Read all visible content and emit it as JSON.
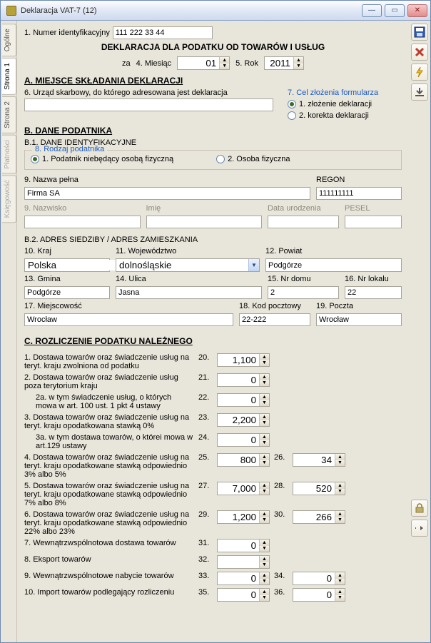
{
  "window": {
    "title": "Deklaracja VAT-7 (12)"
  },
  "tabs": {
    "ogolne": "Ogólne",
    "strona1": "Strona 1",
    "strona2": "Strona 2",
    "platnosci": "Płatności",
    "ksiegowosc": "Księgowość"
  },
  "head": {
    "label1": "1. Numer identyfikacyjny",
    "id": "111 222 33 44",
    "title": "DEKLARACJA DLA PODATKU OD TOWARÓW I USŁUG",
    "za": "za",
    "l4": "4. Miesiąc",
    "month": "01",
    "l5": "5. Rok",
    "year": "2011"
  },
  "A": {
    "header": "A. MIEJSCE SKŁADANIA DEKLARACJI",
    "l6": "6. Urząd skarbowy, do którego adresowana jest deklaracja",
    "v6": "",
    "l7": "7. Cel złożenia formularza",
    "opt1": "1. złożenie deklaracji",
    "opt2": "2. korekta deklaracji"
  },
  "B": {
    "header": "B. DANE PODATNIKA",
    "b1": "B.1. DANE IDENTYFIKACYJNE",
    "l8": "8. Rodzaj podatnika",
    "opt1": "1. Podatnik niebędący osobą fizyczną",
    "opt2": "2. Osoba fizyczna",
    "l9": "9. Nazwa pełna",
    "regonL": "REGON",
    "nazwa": "Firma SA",
    "regon": "111111111",
    "nazwiskoL": "9. Nazwisko",
    "imieL": "Imię",
    "dataL": "Data urodzenia",
    "peselL": "PESEL",
    "b2": "B.2. ADRES SIEDZIBY / ADRES ZAMIESZKANIA",
    "l10": "10. Kraj",
    "l11": "11. Województwo",
    "l12": "12. Powiat",
    "v10": "Polska",
    "v11": "dolnośląskie",
    "v12": "Podgórze",
    "l13": "13. Gmina",
    "l14": "14. Ulica",
    "l15": "15. Nr domu",
    "l16": "16. Nr lokalu",
    "v13": "Podgórze",
    "v14": "Jasna",
    "v15": "2",
    "v16": "22",
    "l17": "17. Miejscowość",
    "l18": "18. Kod pocztowy",
    "l19": "19. Poczta",
    "v17": "Wrocław",
    "v18": "22-222",
    "v19": "Wrocław"
  },
  "C": {
    "header": "C. ROZLICZENIE PODATKU NALEŻNEGO",
    "rows": [
      {
        "t": "1. Dostawa towarów oraz świadczenie usług na teryt. kraju zwolniona od podatku",
        "a": "20.",
        "av": "1,100"
      },
      {
        "t": "2. Dostawa towarów oraz świadczenie usług poza terytorium kraju",
        "a": "21.",
        "av": "0"
      },
      {
        "t": "   2a. w tym świadczenie usług, o których mowa w art. 100 ust. 1 pkt 4 ustawy",
        "a": "22.",
        "av": "0",
        "indent": true
      },
      {
        "t": "3. Dostawa towarów oraz świadczenie usług na teryt. kraju opodatkowana stawką 0%",
        "a": "23.",
        "av": "2,200"
      },
      {
        "t": "   3a. w tym dostawa towarów, o którei mowa w art.129 ustawy",
        "a": "24.",
        "av": "0",
        "indent": true
      },
      {
        "t": "4. Dostawa towarów oraz świadczenie usług na teryt. kraju opodatkowane stawką odpowiednio 3% albo 5%",
        "a": "25.",
        "av": "800",
        "b": "26.",
        "bv": "34"
      },
      {
        "t": "5. Dostawa towarów oraz świadczenie usług na teryt. kraju opodatkowane stawką odpowiednio 7% albo 8%",
        "a": "27.",
        "av": "7,000",
        "b": "28.",
        "bv": "520"
      },
      {
        "t": "6. Dostawa towarów oraz świadczenie usług na teryt. kraju opodatkowane stawką odpowiednio 22% albo 23%",
        "a": "29.",
        "av": "1,200",
        "b": "30.",
        "bv": "266"
      },
      {
        "t": "7. Wewnątrzwspólnotowa dostawa towarów",
        "a": "31.",
        "av": "0"
      },
      {
        "t": "8. Eksport towarów",
        "a": "32.",
        "av": ""
      },
      {
        "t": "9. Wewnątrzwspólnotowe nabycie towarów",
        "a": "33.",
        "av": "0",
        "b": "34.",
        "bv": "0"
      },
      {
        "t": "10. Import towarów  podlegający rozliczeniu",
        "a": "35.",
        "av": "0",
        "b": "36.",
        "bv": "0"
      }
    ]
  },
  "colors": {
    "blue": "#1b5bbf"
  }
}
